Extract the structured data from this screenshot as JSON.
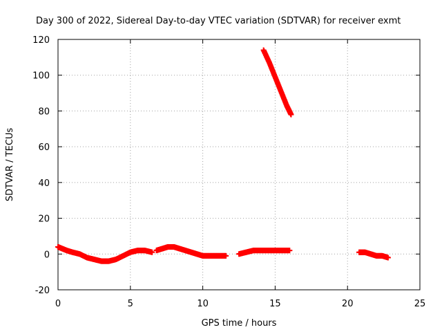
{
  "chart_data": {
    "type": "scatter",
    "title": "Day 300 of 2022, Sidereal Day-to-day VTEC variation (SDTVAR) for receiver exmt",
    "xlabel": "GPS time / hours",
    "ylabel": "SDTVAR / TECUs",
    "xlim": [
      0,
      25
    ],
    "ylim": [
      -20,
      120
    ],
    "xticks": [
      "0",
      "5",
      "10",
      "15",
      "20",
      "25"
    ],
    "yticks": [
      "-20",
      "0",
      "20",
      "40",
      "60",
      "80",
      "100",
      "120"
    ],
    "grid": true,
    "marker": "plus",
    "color": "#ff0000",
    "series": [
      {
        "name": "segment-1",
        "x": [
          0.0,
          0.3,
          0.6,
          1.0,
          1.5,
          2.0,
          2.5,
          3.0,
          3.5,
          4.0,
          4.5,
          5.0,
          5.5,
          6.0,
          6.5
        ],
        "y": [
          4,
          3,
          2,
          1,
          0,
          -2,
          -3,
          -4,
          -4,
          -3,
          -1,
          1,
          2,
          2,
          1
        ]
      },
      {
        "name": "segment-2",
        "x": [
          6.8,
          7.2,
          7.6,
          8.0,
          8.4,
          8.8,
          9.2,
          9.6,
          10.0,
          10.4,
          10.8,
          11.2,
          11.6
        ],
        "y": [
          2,
          3,
          4,
          4,
          3,
          2,
          1,
          0,
          -1,
          -1,
          -1,
          -1,
          -1
        ]
      },
      {
        "name": "segment-3",
        "x": [
          12.5,
          13.0,
          13.5,
          14.0,
          14.5,
          15.0,
          15.5,
          16.0
        ],
        "y": [
          0,
          1,
          2,
          2,
          2,
          2,
          2,
          2
        ]
      },
      {
        "name": "segment-4",
        "x": [
          14.2,
          14.6,
          15.0,
          15.4,
          15.8,
          16.1
        ],
        "y": [
          114,
          107,
          99,
          91,
          83,
          78
        ]
      },
      {
        "name": "segment-5",
        "x": [
          20.8,
          21.2,
          21.6,
          22.0,
          22.4,
          22.8
        ],
        "y": [
          1,
          1,
          0,
          -1,
          -1,
          -2
        ]
      }
    ]
  }
}
